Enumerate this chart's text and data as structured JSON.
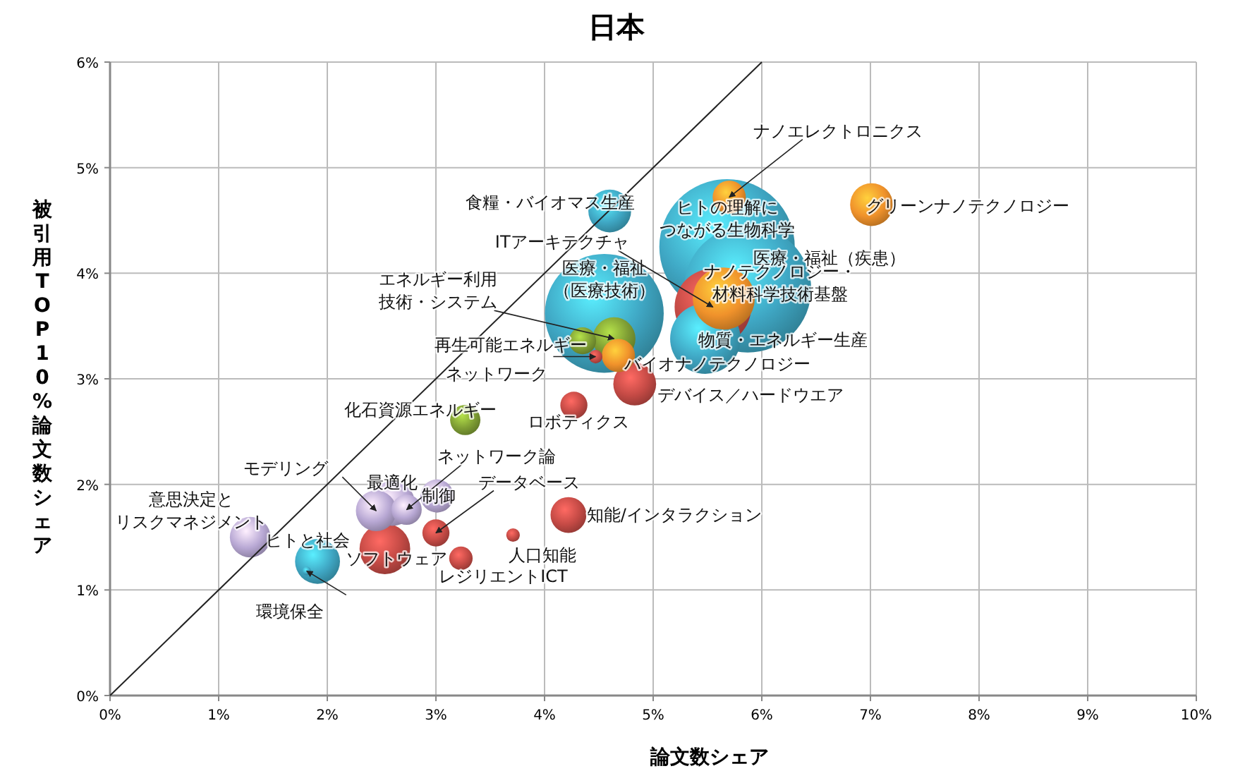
{
  "chart_data": {
    "type": "bubble",
    "title": "日本",
    "xlabel": "論文数シェア",
    "ylabel": "被引用TOP10%論文数シェア",
    "xlim": [
      0,
      10
    ],
    "xticks": [
      {
        "value": 0,
        "label": "0%"
      },
      {
        "value": 1,
        "label": "1%"
      },
      {
        "value": 2,
        "label": "2%"
      },
      {
        "value": 3,
        "label": "3%"
      },
      {
        "value": 4,
        "label": "4%"
      },
      {
        "value": 5,
        "label": "5%"
      },
      {
        "value": 6,
        "label": "6%"
      },
      {
        "value": 7,
        "label": "7%"
      },
      {
        "value": 8,
        "label": "8%"
      },
      {
        "value": 9,
        "label": "9%"
      },
      {
        "value": 10,
        "label": "10%"
      }
    ],
    "ylim": [
      0,
      6
    ],
    "yticks": [
      {
        "value": 0,
        "label": "0%"
      },
      {
        "value": 1,
        "label": "1%"
      },
      {
        "value": 2,
        "label": "2%"
      },
      {
        "value": 3,
        "label": "3%"
      },
      {
        "value": 4,
        "label": "4%"
      },
      {
        "value": 5,
        "label": "5%"
      },
      {
        "value": 6,
        "label": "6%"
      }
    ],
    "grid": true,
    "series": [
      {
        "type": "bubble",
        "x": [
          5.68,
          5.87,
          4.55,
          5.55,
          5.48,
          5.65,
          4.6,
          2.53,
          2.6,
          1.91,
          7.01,
          4.64,
          4.83,
          1.29,
          2.45,
          4.22,
          4.68,
          2.73,
          3.01,
          3.27,
          4.35,
          5.7,
          4.27,
          3.0,
          3.23,
          3.71,
          4.47,
          1.81
        ],
        "values": [
          4.25,
          3.85,
          3.62,
          3.68,
          3.38,
          3.76,
          4.59,
          1.39,
          1.82,
          1.27,
          4.65,
          3.38,
          2.95,
          1.5,
          1.75,
          1.71,
          3.22,
          1.76,
          1.89,
          2.61,
          3.36,
          4.72,
          2.75,
          1.54,
          1.3,
          1.52,
          3.21,
          1.18
        ],
        "sizes": [
          1,
          0.88,
          0.77,
          0.32,
          0.27,
          0.21,
          0.1,
          0.14,
          0.11,
          0.11,
          0.1,
          0.1,
          0.1,
          0.09,
          0.09,
          0.07,
          0.06,
          0.05,
          0.06,
          0.05,
          0.04,
          0.06,
          0.04,
          0.04,
          0.03,
          0.01,
          0.01,
          0.004
        ],
        "colors": [
          "#3fa7c4",
          "#3fa7c4",
          "#3fa7c4",
          "#c44a45",
          "#3fa7c4",
          "#f0922b",
          "#3fa7c4",
          "#c44a45",
          "#b8a8d4",
          "#3fa7c4",
          "#f0922b",
          "#7f9e34",
          "#c44a45",
          "#b8a8d4",
          "#b8a8d4",
          "#c44a45",
          "#f0922b",
          "#b8a8d4",
          "#b8a8d4",
          "#7f9e34",
          "#7f9e34",
          "#f0922b",
          "#c44a45",
          "#c44a45",
          "#c44a45",
          "#c44a45",
          "#c44a45",
          "#3fa7c4"
        ]
      },
      {
        "type": "line",
        "x": [
          0,
          6
        ],
        "values": [
          0,
          6
        ],
        "color": "#222222",
        "marker": "none"
      }
    ],
    "annotations": [
      {
        "text": "ヒトの理解につながる生物科学",
        "x": 5.68,
        "y": 4.25
      },
      {
        "text": "医療・福祉（疾患）",
        "x": 5.87,
        "y": 3.85
      },
      {
        "text": "医療・福祉（医療技術）",
        "x": 4.55,
        "y": 3.62
      },
      {
        "text": "ITアーキテクチャ",
        "x": 5.55,
        "y": 3.68
      },
      {
        "text": "物質・エネルギー生産",
        "x": 5.48,
        "y": 3.38
      },
      {
        "text": "ナノテクノロジー・材料科学技術基盤",
        "x": 5.65,
        "y": 3.76
      },
      {
        "text": "食糧・バイオマス生産",
        "x": 4.6,
        "y": 4.59
      },
      {
        "text": "ソフトウェア",
        "x": 2.53,
        "y": 1.39
      },
      {
        "text": "最適化",
        "x": 2.6,
        "y": 1.82
      },
      {
        "text": "ヒトと社会",
        "x": 1.91,
        "y": 1.27
      },
      {
        "text": "グリーンナノテクノロジー",
        "x": 7.01,
        "y": 4.65
      },
      {
        "text": "エネルギー利用技術・システム",
        "x": 4.64,
        "y": 3.38
      },
      {
        "text": "デバイス／ハードウエア",
        "x": 4.83,
        "y": 2.95
      },
      {
        "text": "意思決定とリスクマネジメント",
        "x": 1.29,
        "y": 1.5
      },
      {
        "text": "モデリング",
        "x": 2.45,
        "y": 1.75
      },
      {
        "text": "知能/インタラクション",
        "x": 4.22,
        "y": 1.71
      },
      {
        "text": "バイオナノテクノロジー",
        "x": 4.68,
        "y": 3.22
      },
      {
        "text": "ネットワーク論",
        "x": 2.73,
        "y": 1.76
      },
      {
        "text": "制御",
        "x": 3.01,
        "y": 1.89
      },
      {
        "text": "化石資源エネルギー",
        "x": 3.27,
        "y": 2.61
      },
      {
        "text": "再生可能エネルギー",
        "x": 4.35,
        "y": 3.36
      },
      {
        "text": "ナノエレクトロニクス",
        "x": 5.7,
        "y": 4.72
      },
      {
        "text": "ロボティクス",
        "x": 4.27,
        "y": 2.75
      },
      {
        "text": "データベース",
        "x": 3.0,
        "y": 1.54
      },
      {
        "text": "レジリエントICT",
        "x": 3.23,
        "y": 1.3
      },
      {
        "text": "人口知能",
        "x": 3.71,
        "y": 1.52
      },
      {
        "text": "ネットワーク",
        "x": 4.47,
        "y": 3.21
      },
      {
        "text": "環境保全",
        "x": 1.81,
        "y": 1.18
      }
    ]
  }
}
